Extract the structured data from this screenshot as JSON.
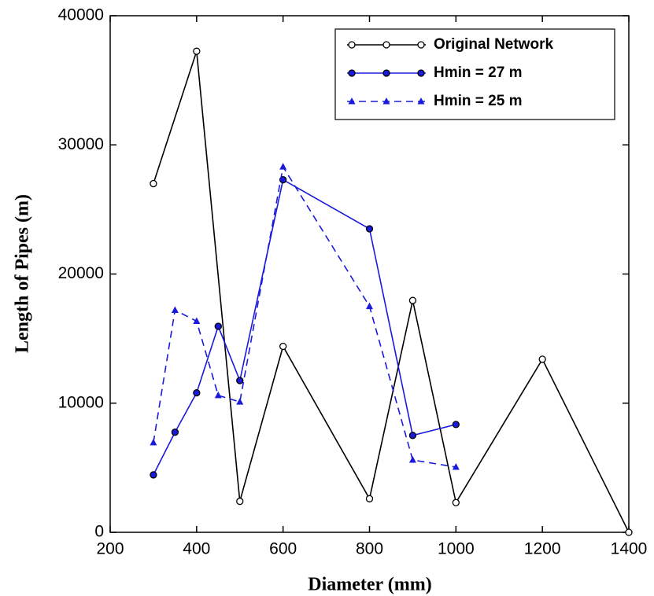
{
  "chart_data": {
    "type": "line",
    "x_label": "Diameter (mm)",
    "y_label": "Length of Pipes (m)",
    "xlim": [
      200,
      1400
    ],
    "xticks": [
      200,
      400,
      600,
      800,
      1000,
      1200,
      1400
    ],
    "ylim": [
      0,
      40000
    ],
    "yticks": [
      0,
      10000,
      20000,
      30000,
      40000
    ],
    "legend": "top-right",
    "series": [
      {
        "name": "Original Network",
        "color": "#000000",
        "marker": "open-circle",
        "dash": false,
        "x": [
          300,
          400,
          500,
          600,
          800,
          900,
          1000,
          1200,
          1400
        ],
        "values": [
          27000,
          37250,
          2400,
          14400,
          2600,
          17950,
          2300,
          13400,
          0
        ]
      },
      {
        "name": "Hmin = 27 m",
        "color": "#1a1adc",
        "marker": "filled-circle",
        "dash": false,
        "x": [
          300,
          350,
          400,
          450,
          500,
          600,
          800,
          900,
          1000
        ],
        "values": [
          4450,
          7750,
          10800,
          15950,
          11750,
          27300,
          23500,
          7500,
          8350
        ]
      },
      {
        "name": "Hmin = 25 m",
        "color": "#1a1adc",
        "marker": "triangle",
        "dash": true,
        "x": [
          300,
          350,
          400,
          450,
          500,
          600,
          800,
          900,
          1000
        ],
        "values": [
          6950,
          17200,
          16350,
          10600,
          10100,
          28300,
          17500,
          5600,
          5050
        ]
      }
    ]
  }
}
